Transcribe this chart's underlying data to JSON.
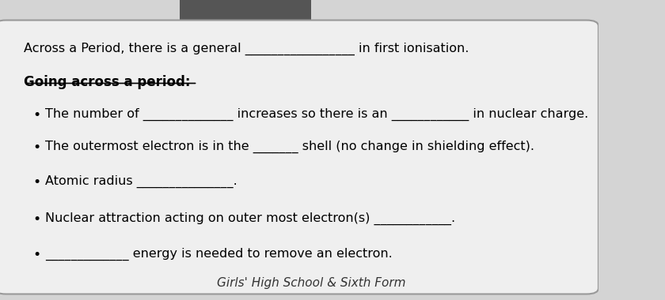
{
  "bg_color": "#d4d4d4",
  "box_color": "#efefef",
  "box_edge_color": "#999999",
  "title_bar_color": "#555555",
  "line1": "Across a Period, there is a general _________________ in first ionisation.",
  "heading": "Going across a period:",
  "bullet1": "The number of ______________ increases so there is an ____________ in nuclear charge.",
  "bullet2": "The outermost electron is in the _______ shell (no change in shielding effect).",
  "bullet3": "Atomic radius _______________.",
  "bullet4": "Nuclear attraction acting on outer most electron(s) ____________.",
  "bullet5": "_____________ energy is needed to remove an electron.",
  "footer": "Girls' High School & Sixth Form",
  "font_size_main": 11.5,
  "font_size_heading": 12,
  "font_size_footer": 11
}
